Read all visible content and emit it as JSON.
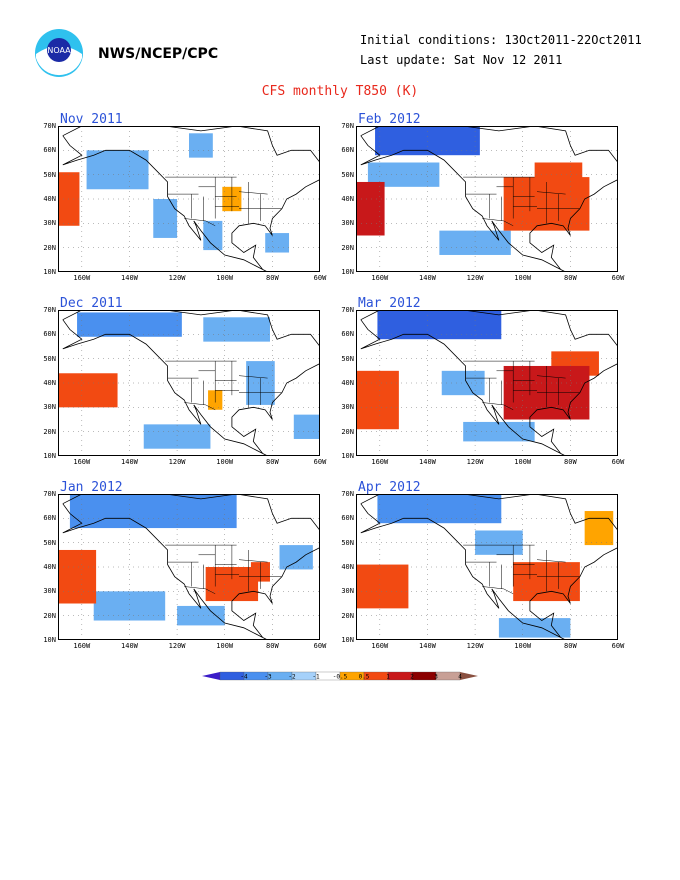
{
  "header": {
    "org": "NWS/NCEP/CPC",
    "logo_text": "NOAA",
    "initial_conditions": "Initial conditions: 13Oct2011-22Oct2011",
    "last_update": "Last update: Sat Nov 12 2011"
  },
  "title": "CFS monthly T850 (K)",
  "axes": {
    "y_ticks": [
      "70N",
      "60N",
      "50N",
      "40N",
      "30N",
      "20N",
      "10N"
    ],
    "x_ticks": [
      "160W",
      "140W",
      "120W",
      "100W",
      "80W",
      "60W"
    ]
  },
  "panels": [
    {
      "title": "Nov 2011",
      "anoms": [
        {
          "lon": -170,
          "lat": 40,
          "w": 18,
          "h": 22,
          "v": 1.4
        },
        {
          "lon": -145,
          "lat": 52,
          "w": 26,
          "h": 16,
          "v": -0.8
        },
        {
          "lon": -125,
          "lat": 32,
          "w": 10,
          "h": 16,
          "v": -0.9
        },
        {
          "lon": -105,
          "lat": 25,
          "w": 8,
          "h": 12,
          "v": -0.7
        },
        {
          "lon": -97,
          "lat": 40,
          "w": 8,
          "h": 10,
          "v": 0.8
        },
        {
          "lon": -78,
          "lat": 22,
          "w": 10,
          "h": 8,
          "v": -0.7
        },
        {
          "lon": -110,
          "lat": 62,
          "w": 10,
          "h": 10,
          "v": -0.7
        }
      ]
    },
    {
      "title": "Dec 2011",
      "anoms": [
        {
          "lon": -160,
          "lat": 37,
          "w": 30,
          "h": 14,
          "v": 1.0
        },
        {
          "lon": -140,
          "lat": 64,
          "w": 44,
          "h": 10,
          "v": -1.2
        },
        {
          "lon": -95,
          "lat": 62,
          "w": 28,
          "h": 10,
          "v": -0.8
        },
        {
          "lon": -120,
          "lat": 18,
          "w": 28,
          "h": 10,
          "v": -0.8
        },
        {
          "lon": -104,
          "lat": 33,
          "w": 6,
          "h": 8,
          "v": 0.8
        },
        {
          "lon": -85,
          "lat": 40,
          "w": 12,
          "h": 18,
          "v": -0.7
        },
        {
          "lon": -65,
          "lat": 22,
          "w": 12,
          "h": 10,
          "v": -0.7
        }
      ]
    },
    {
      "title": "Jan 2012",
      "anoms": [
        {
          "lon": -165,
          "lat": 36,
          "w": 22,
          "h": 22,
          "v": 1.5
        },
        {
          "lon": -130,
          "lat": 63,
          "w": 70,
          "h": 14,
          "v": -1.5
        },
        {
          "lon": -140,
          "lat": 24,
          "w": 30,
          "h": 12,
          "v": -0.8
        },
        {
          "lon": -97,
          "lat": 33,
          "w": 22,
          "h": 14,
          "v": 1.4
        },
        {
          "lon": -85,
          "lat": 38,
          "w": 8,
          "h": 8,
          "v": 1.0
        },
        {
          "lon": -70,
          "lat": 44,
          "w": 14,
          "h": 10,
          "v": -0.8
        },
        {
          "lon": -110,
          "lat": 20,
          "w": 20,
          "h": 8,
          "v": -0.8
        }
      ]
    },
    {
      "title": "Feb 2012",
      "anoms": [
        {
          "lon": -168,
          "lat": 36,
          "w": 20,
          "h": 22,
          "v": 2.4
        },
        {
          "lon": -140,
          "lat": 64,
          "w": 44,
          "h": 12,
          "v": -2.0
        },
        {
          "lon": -90,
          "lat": 38,
          "w": 36,
          "h": 22,
          "v": 1.5
        },
        {
          "lon": -85,
          "lat": 50,
          "w": 20,
          "h": 10,
          "v": 1.3
        },
        {
          "lon": -120,
          "lat": 22,
          "w": 30,
          "h": 10,
          "v": -0.8
        },
        {
          "lon": -150,
          "lat": 50,
          "w": 30,
          "h": 10,
          "v": -0.7
        }
      ]
    },
    {
      "title": "Mar 2012",
      "anoms": [
        {
          "lon": -135,
          "lat": 64,
          "w": 52,
          "h": 12,
          "v": -2.2
        },
        {
          "lon": -165,
          "lat": 33,
          "w": 26,
          "h": 24,
          "v": 1.8
        },
        {
          "lon": -90,
          "lat": 36,
          "w": 36,
          "h": 22,
          "v": 2.3
        },
        {
          "lon": -78,
          "lat": 48,
          "w": 20,
          "h": 10,
          "v": 1.3
        },
        {
          "lon": -125,
          "lat": 40,
          "w": 18,
          "h": 10,
          "v": -0.8
        },
        {
          "lon": -110,
          "lat": 20,
          "w": 30,
          "h": 8,
          "v": -0.8
        }
      ]
    },
    {
      "title": "Apr 2012",
      "anoms": [
        {
          "lon": -135,
          "lat": 64,
          "w": 52,
          "h": 12,
          "v": -1.3
        },
        {
          "lon": -160,
          "lat": 32,
          "w": 24,
          "h": 18,
          "v": 1.0
        },
        {
          "lon": -163,
          "lat": 28,
          "w": 10,
          "h": 6,
          "v": 1.5
        },
        {
          "lon": -90,
          "lat": 34,
          "w": 28,
          "h": 16,
          "v": 1.5
        },
        {
          "lon": -68,
          "lat": 56,
          "w": 12,
          "h": 14,
          "v": 0.9
        },
        {
          "lon": -95,
          "lat": 15,
          "w": 30,
          "h": 8,
          "v": -0.8
        },
        {
          "lon": -110,
          "lat": 50,
          "w": 20,
          "h": 10,
          "v": -0.7
        }
      ]
    }
  ],
  "colorbar": {
    "labels": [
      "-4",
      "-3",
      "-2",
      "-1",
      "-0.5",
      "0.5",
      "1",
      "2",
      "3",
      "4"
    ],
    "colors": [
      "#3a1cc8",
      "#2f5fe0",
      "#4a90ef",
      "#6aaff2",
      "#a6d1fa",
      "#ffffff",
      "#ffa400",
      "#f24a12",
      "#c8181a",
      "#8b0000",
      "#c8a096",
      "#8a5040"
    ]
  }
}
